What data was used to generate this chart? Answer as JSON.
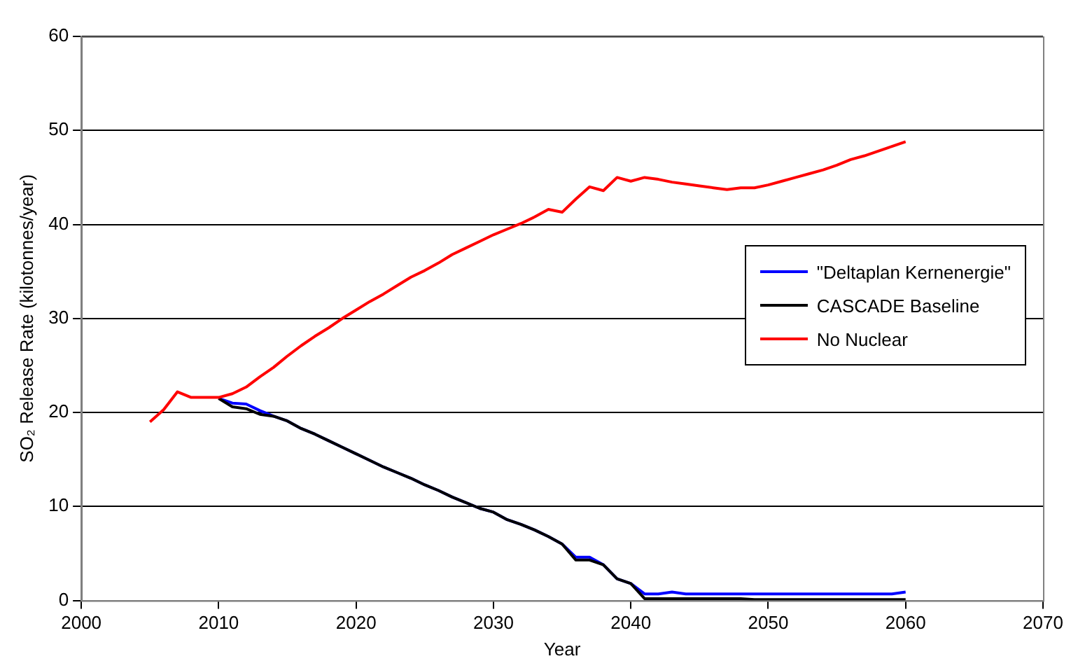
{
  "chart_data": {
    "type": "line",
    "xlabel": "Year",
    "ylabel": "SO₂ Release Rate (kilotonnes/year)",
    "x": [
      2005,
      2006,
      2007,
      2008,
      2009,
      2010,
      2011,
      2012,
      2013,
      2014,
      2015,
      2016,
      2017,
      2018,
      2019,
      2020,
      2021,
      2022,
      2023,
      2024,
      2025,
      2026,
      2027,
      2028,
      2029,
      2030,
      2031,
      2032,
      2033,
      2034,
      2035,
      2036,
      2037,
      2038,
      2039,
      2040,
      2041,
      2042,
      2043,
      2044,
      2045,
      2046,
      2047,
      2048,
      2049,
      2050,
      2051,
      2052,
      2053,
      2054,
      2055,
      2056,
      2057,
      2058,
      2059,
      2060
    ],
    "series": [
      {
        "name": "\"Deltaplan Kernenergie\"",
        "color": "#0000ff",
        "values": [
          null,
          null,
          null,
          null,
          null,
          21.5,
          21.0,
          20.9,
          20.2,
          19.6,
          19.1,
          18.3,
          17.7,
          17.0,
          16.3,
          15.6,
          14.9,
          14.2,
          13.6,
          13.0,
          12.3,
          11.7,
          11.0,
          10.4,
          9.8,
          9.4,
          8.6,
          8.1,
          7.5,
          6.8,
          6.0,
          4.6,
          4.6,
          3.8,
          2.3,
          1.8,
          0.7,
          0.7,
          0.9,
          0.7,
          0.7,
          0.7,
          0.7,
          0.7,
          0.7,
          0.7,
          0.7,
          0.7,
          0.7,
          0.7,
          0.7,
          0.7,
          0.7,
          0.7,
          0.7,
          0.9
        ]
      },
      {
        "name": "CASCADE Baseline",
        "color": "#000000",
        "values": [
          null,
          null,
          null,
          null,
          null,
          21.5,
          20.6,
          20.4,
          19.8,
          19.6,
          19.1,
          18.3,
          17.7,
          17.0,
          16.3,
          15.6,
          14.9,
          14.2,
          13.6,
          13.0,
          12.3,
          11.7,
          11.0,
          10.4,
          9.8,
          9.4,
          8.6,
          8.1,
          7.5,
          6.8,
          6.0,
          4.3,
          4.3,
          3.8,
          2.3,
          1.8,
          0.2,
          0.2,
          0.2,
          0.2,
          0.2,
          0.2,
          0.2,
          0.2,
          0.1,
          0.1,
          0.1,
          0.1,
          0.1,
          0.1,
          0.1,
          0.1,
          0.1,
          0.1,
          0.1,
          0.1
        ]
      },
      {
        "name": "No Nuclear",
        "color": "#ff0000",
        "values": [
          19,
          20.3,
          22.2,
          21.6,
          21.6,
          21.6,
          22,
          22.7,
          23.8,
          24.8,
          26,
          27.1,
          28.1,
          29,
          30,
          30.9,
          31.8,
          32.6,
          33.5,
          34.4,
          35.1,
          35.9,
          36.8,
          37.5,
          38.2,
          38.9,
          39.5,
          40.1,
          40.8,
          41.6,
          41.3,
          42.7,
          44,
          43.6,
          45,
          44.6,
          45,
          44.8,
          44.5,
          44.3,
          44.1,
          43.9,
          43.7,
          43.9,
          43.9,
          44.2,
          44.6,
          45,
          45.4,
          45.8,
          46.3,
          46.9,
          47.3,
          47.8,
          48.3,
          48.8
        ]
      }
    ],
    "xlim": [
      2000,
      2070
    ],
    "xticks": [
      2000,
      2010,
      2020,
      2030,
      2040,
      2050,
      2060,
      2070
    ],
    "ylim": [
      0,
      60
    ],
    "yticks": [
      0,
      10,
      20,
      30,
      40,
      50,
      60
    ],
    "grid": "y",
    "legend": "right",
    "marker": "none",
    "line_style": "solid"
  }
}
